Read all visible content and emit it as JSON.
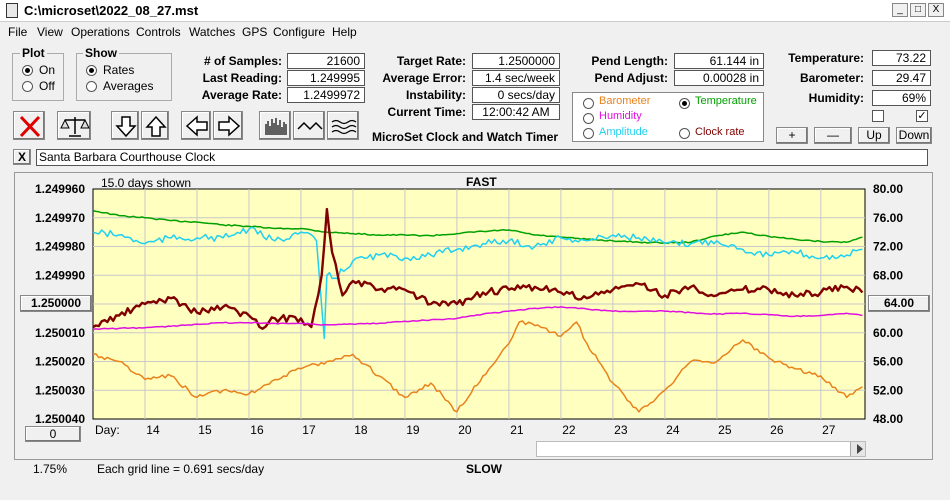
{
  "window": {
    "title": "C:\\microset\\2022_08_27.mst",
    "minimize": "_",
    "maximize": "□",
    "close": "X"
  },
  "menu": [
    "File",
    "View",
    "Operations",
    "Controls",
    "Watches",
    "GPS",
    "Configure",
    "Help"
  ],
  "plot_group": {
    "label": "Plot",
    "on": "On",
    "off": "Off",
    "selected": "On"
  },
  "show_group": {
    "label": "Show",
    "rates": "Rates",
    "averages": "Averages",
    "selected": "Rates"
  },
  "stats": {
    "samples_label": "# of Samples:",
    "samples": "21600",
    "last_reading_label": "Last Reading:",
    "last_reading": "1.249995",
    "average_rate_label": "Average Rate:",
    "average_rate": "1.2499972",
    "target_rate_label": "Target Rate:",
    "target_rate": "1.2500000",
    "average_error_label": "Average Error:",
    "average_error": "1.4 sec/week",
    "instability_label": "Instability:",
    "instability": "0 secs/day",
    "current_time_label": "Current Time:",
    "current_time": "12:00:42 AM",
    "pend_length_label": "Pend Length:",
    "pend_length": "61.144 in",
    "pend_adjust_label": "Pend Adjust:",
    "pend_adjust": "0.00028 in"
  },
  "app_title": "MicroSet Clock and Watch Timer",
  "overlay_options": [
    {
      "label": "Barometer",
      "color": "#e8821c",
      "selected": false
    },
    {
      "label": "Temperature",
      "color": "#00a000",
      "selected": true
    },
    {
      "label": "Humidity",
      "color": "#e010e0",
      "selected": false
    },
    {
      "label": "Amplitude",
      "color": "#20d0f0",
      "selected": false
    },
    {
      "label": "Clock rate",
      "color": "#800000",
      "selected": false
    }
  ],
  "environment": {
    "temperature_label": "Temperature:",
    "temperature": "73.22",
    "barometer_label": "Barometer:",
    "barometer": "29.47",
    "humidity_label": "Humidity:",
    "humidity": "69%",
    "check1": false,
    "check2": true
  },
  "adjust_buttons": {
    "plus": "+",
    "minus": "—",
    "up": "Up",
    "down": "Down"
  },
  "toolbar_icons": [
    "clear-icon",
    "balance-icon",
    "arrow-down-icon",
    "arrow-up-icon",
    "arrow-left-icon",
    "arrow-right-icon",
    "bar-graph-icon",
    "wave-icon",
    "multi-wave-icon"
  ],
  "clock_name": {
    "close": "X",
    "value": "Santa Barbara Courthouse Clock"
  },
  "chart_data": {
    "type": "line",
    "top_label": "FAST",
    "bottom_label": "SLOW",
    "days_shown": "15.0 days shown",
    "grid_note": "Each grid line = 0.691 secs/day",
    "left_ticks": [
      "1.249960",
      "1.249970",
      "1.249980",
      "1.249990",
      "1.250000",
      "1.250010",
      "1.250020",
      "1.250030",
      "1.250040"
    ],
    "left_highlight": "1.250000",
    "right_ticks": [
      "80.00",
      "76.00",
      "72.00",
      "68.00",
      "64.00",
      "60.00",
      "56.00",
      "52.00",
      "48.00"
    ],
    "right_highlight": "64.00",
    "x_title": "Day:",
    "x_ticks": [
      "14",
      "15",
      "16",
      "17",
      "18",
      "19",
      "20",
      "21",
      "22",
      "23",
      "24",
      "25",
      "26",
      "27"
    ],
    "x_range": [
      13.0,
      27.85
    ],
    "left_range": [
      1.24996,
      1.25004
    ],
    "right_range": [
      48,
      80
    ],
    "background": "#ffffc0",
    "series": [
      {
        "name": "Temperature",
        "color": "#00a000",
        "axis": "right",
        "x": [
          13.0,
          13.5,
          14.0,
          14.5,
          15.0,
          15.5,
          16.0,
          16.5,
          17.0,
          17.5,
          18.0,
          18.5,
          19.0,
          19.5,
          20.0,
          20.5,
          21.0,
          21.5,
          22.0,
          22.5,
          23.0,
          23.5,
          24.0,
          24.5,
          25.0,
          25.5,
          26.0,
          26.5,
          27.0,
          27.5,
          27.8
        ],
        "y": [
          77.0,
          76.3,
          76.0,
          75.6,
          75.4,
          75.0,
          74.8,
          74.5,
          74.5,
          74.0,
          73.8,
          73.6,
          73.6,
          73.5,
          73.8,
          74.1,
          74.3,
          73.6,
          73.3,
          73.0,
          72.8,
          72.6,
          72.5,
          72.6,
          73.5,
          74.0,
          73.4,
          73.0,
          72.7,
          72.6,
          73.3
        ]
      },
      {
        "name": "Amplitude",
        "color": "#20d0f0",
        "axis": "left",
        "x": [
          13.0,
          13.5,
          14.0,
          14.5,
          15.0,
          15.5,
          16.0,
          16.5,
          17.0,
          17.3,
          17.45,
          17.5,
          17.65,
          18.0,
          18.5,
          19.0,
          19.5,
          20.0,
          20.5,
          21.0,
          21.5,
          22.0,
          22.5,
          23.0,
          23.5,
          24.0,
          24.5,
          25.0,
          25.5,
          26.0,
          26.5,
          27.0,
          27.5,
          27.8
        ],
        "y": [
          1.249975,
          1.249976,
          1.249979,
          1.249977,
          1.249977,
          1.249977,
          1.249974,
          1.249978,
          1.249975,
          1.249978,
          1.250012,
          1.24999,
          1.249991,
          1.249985,
          1.249983,
          1.249984,
          1.249983,
          1.249981,
          1.249979,
          1.249978,
          1.24998,
          1.249977,
          1.249978,
          1.249976,
          1.249977,
          1.249979,
          1.249979,
          1.249978,
          1.249981,
          1.249983,
          1.249982,
          1.249984,
          1.249983,
          1.249981
        ]
      },
      {
        "name": "Clock rate",
        "color": "#800000",
        "axis": "left",
        "x": [
          13.0,
          13.5,
          14.0,
          14.5,
          15.0,
          15.5,
          16.0,
          16.2,
          16.5,
          17.0,
          17.2,
          17.4,
          17.5,
          17.6,
          17.8,
          18.0,
          18.5,
          19.0,
          19.5,
          20.0,
          20.5,
          21.0,
          21.5,
          22.0,
          22.5,
          23.0,
          23.5,
          24.0,
          24.5,
          25.0,
          25.5,
          26.0,
          26.5,
          27.0,
          27.5,
          27.8
        ],
        "y": [
          1.250008,
          1.250004,
          1.25,
          1.249998,
          1.250003,
          1.250001,
          1.250004,
          1.250008,
          1.250005,
          1.250005,
          1.250008,
          1.24999,
          1.249967,
          1.249982,
          1.249997,
          1.249992,
          1.249995,
          1.249995,
          1.25,
          1.25,
          1.249996,
          1.249995,
          1.249994,
          1.249996,
          1.249998,
          1.249995,
          1.249993,
          1.249997,
          1.249994,
          1.249997,
          1.249995,
          1.249995,
          1.249997,
          1.249996,
          1.249994,
          1.249996
        ]
      },
      {
        "name": "Humidity",
        "color": "#e010e0",
        "axis": "right",
        "x": [
          13.0,
          13.5,
          14.0,
          14.5,
          15.0,
          15.5,
          16.0,
          16.5,
          17.0,
          17.5,
          18.0,
          18.5,
          19.0,
          19.5,
          20.0,
          20.5,
          21.0,
          21.5,
          22.0,
          22.5,
          23.0,
          23.5,
          24.0,
          24.5,
          25.0,
          25.5,
          26.0,
          26.5,
          27.0,
          27.5,
          27.8
        ],
        "y": [
          60.5,
          60.6,
          60.7,
          60.9,
          61.2,
          61.4,
          61.4,
          61.3,
          61.3,
          61.1,
          61.2,
          61.3,
          61.6,
          61.8,
          62.0,
          62.6,
          63.0,
          63.4,
          63.6,
          63.3,
          63.0,
          63.0,
          63.0,
          62.8,
          62.6,
          62.7,
          62.5,
          62.3,
          62.4,
          62.7,
          62.4
        ]
      },
      {
        "name": "Barometer",
        "color": "#e8821c",
        "axis": "right",
        "x": [
          13.0,
          13.5,
          14.0,
          14.5,
          15.0,
          15.5,
          16.0,
          16.5,
          17.0,
          17.5,
          18.0,
          18.5,
          19.0,
          19.5,
          20.0,
          20.5,
          21.0,
          21.2,
          21.5,
          22.0,
          22.3,
          22.5,
          23.0,
          23.5,
          24.0,
          24.5,
          25.0,
          25.5,
          26.0,
          26.5,
          27.0,
          27.5,
          27.8
        ],
        "y": [
          57.0,
          56.0,
          53.5,
          54.0,
          51.0,
          52.0,
          51.5,
          53.5,
          55.0,
          56.0,
          57.0,
          54.0,
          51.0,
          53.0,
          49.0,
          54.0,
          58.5,
          61.5,
          61.0,
          59.5,
          61.5,
          58.5,
          53.0,
          49.0,
          52.0,
          56.0,
          56.0,
          59.0,
          56.5,
          55.0,
          54.0,
          51.0,
          52.5
        ]
      }
    ]
  },
  "bottom": {
    "zero_button": "0",
    "percent": "1.75%"
  }
}
